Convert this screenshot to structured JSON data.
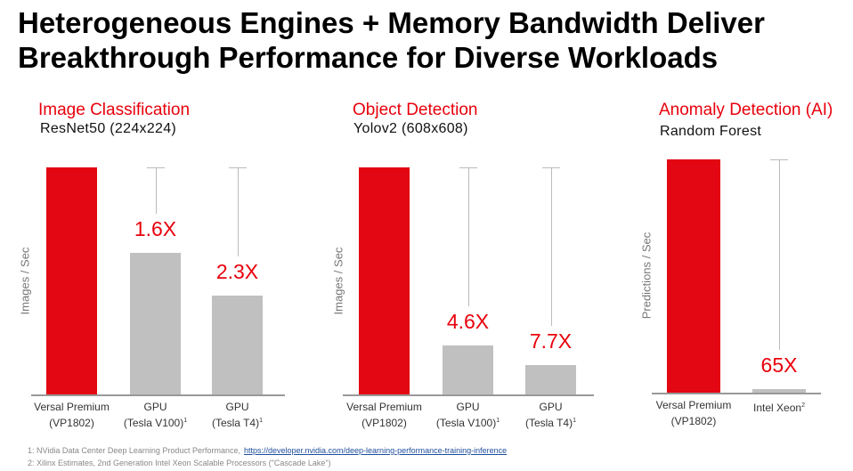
{
  "title_line1": "Heterogeneous Engines + Memory Bandwidth Deliver",
  "title_line2": "Breakthrough Performance for Diverse Workloads",
  "colors": {
    "versal": "#e30613",
    "competitor": "#c0c0c0",
    "accent_text": "#e8000b"
  },
  "chart_data": [
    {
      "type": "bar",
      "title": "Image Classification",
      "subtitle": "ResNet50 (224x224)",
      "ylabel": "Images / Sec",
      "ylim": [
        0,
        1
      ],
      "categories": [
        {
          "line1": "Versal Premium",
          "line2": "(VP1802)",
          "sup": ""
        },
        {
          "line1": "GPU",
          "line2": "(Tesla V100)",
          "sup": "1"
        },
        {
          "line1": "GPU",
          "line2": "(Tesla T4)",
          "sup": "1"
        }
      ],
      "values": [
        1.0,
        0.625,
        0.435
      ],
      "data_labels": [
        "",
        "1.6X",
        "2.3X"
      ]
    },
    {
      "type": "bar",
      "title": "Object Detection",
      "subtitle": "Yolov2 (608x608)",
      "ylabel": "Images / Sec",
      "ylim": [
        0,
        1
      ],
      "categories": [
        {
          "line1": "Versal Premium",
          "line2": "(VP1802)",
          "sup": ""
        },
        {
          "line1": "GPU",
          "line2": "(Tesla V100)",
          "sup": "1"
        },
        {
          "line1": "GPU",
          "line2": "(Tesla T4)",
          "sup": "1"
        }
      ],
      "values": [
        1.0,
        0.217,
        0.13
      ],
      "data_labels": [
        "",
        "4.6X",
        "7.7X"
      ]
    },
    {
      "type": "bar",
      "title": "Anomaly Detection (AI)",
      "subtitle": "Random Forest",
      "ylabel": "Predictions / Sec",
      "ylim": [
        0,
        1
      ],
      "categories": [
        {
          "line1": "Versal Premium",
          "line2": "(VP1802)",
          "sup": ""
        },
        {
          "line1": "Intel Xeon",
          "line2": "",
          "sup": "2"
        }
      ],
      "values": [
        1.0,
        0.015
      ],
      "data_labels": [
        "",
        "65X"
      ]
    }
  ],
  "footnotes": [
    {
      "text": "1: NVidia Data Center Deep Learning Product Performance,",
      "link": "https://developer.nvidia.com/deep-learning-performance-training-inference"
    },
    {
      "text": "2: Xilinx Estimates, 2nd Generation Intel Xeon Scalable Processors (\"Cascade Lake\")",
      "link": ""
    }
  ]
}
